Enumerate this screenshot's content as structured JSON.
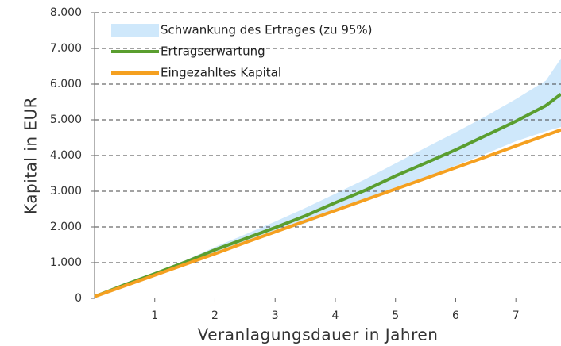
{
  "chart_data": {
    "type": "line",
    "x_label": "Veranlagungsdauer in Jahren",
    "y_label": "Kapital in EUR",
    "x": [
      0,
      0.5,
      1,
      1.5,
      2,
      2.5,
      3,
      3.5,
      4,
      4.5,
      5,
      5.5,
      6,
      6.5,
      7,
      7.5,
      7.75
    ],
    "band": {
      "name": "Schwankung des Ertrages (zu 95%)",
      "color": "#cfe8fb",
      "upper": [
        50,
        390,
        720,
        1060,
        1440,
        1790,
        2150,
        2530,
        2930,
        3340,
        3780,
        4220,
        4650,
        5100,
        5580,
        6100,
        6720
      ],
      "lower": [
        50,
        370,
        660,
        960,
        1280,
        1560,
        1830,
        2100,
        2420,
        2730,
        3110,
        3400,
        3720,
        4050,
        4400,
        4680,
        4800
      ]
    },
    "series": [
      {
        "name": "Ertragserwartung",
        "color": "#5a9e2f",
        "values": [
          50,
          380,
          690,
          1010,
          1360,
          1670,
          1980,
          2310,
          2680,
          3030,
          3430,
          3790,
          4160,
          4560,
          4960,
          5400,
          5720
        ]
      },
      {
        "name": "Eingezahltes Kapital",
        "color": "#f5a020",
        "values": [
          50,
          350,
          650,
          950,
          1250,
          1560,
          1860,
          2160,
          2460,
          2760,
          3060,
          3360,
          3660,
          3960,
          4270,
          4570,
          4720
        ]
      }
    ],
    "xlim": [
      0,
      7.75
    ],
    "xticks": [
      1,
      2,
      3,
      4,
      5,
      6,
      7
    ],
    "ylim": [
      0,
      8000
    ],
    "yticks": [
      0,
      {
        "value": 1000,
        "label": "1.000"
      },
      {
        "value": 2000,
        "label": "2.000"
      },
      {
        "value": 3000,
        "label": "3.000"
      },
      {
        "value": 4000,
        "label": "4.000"
      },
      {
        "value": 5000,
        "label": "5.000"
      },
      {
        "value": 6000,
        "label": "6.000"
      },
      {
        "value": 7000,
        "label": "7.000"
      },
      {
        "value": 8000,
        "label": "8.000"
      }
    ],
    "grid": true,
    "legend": "upper left"
  }
}
